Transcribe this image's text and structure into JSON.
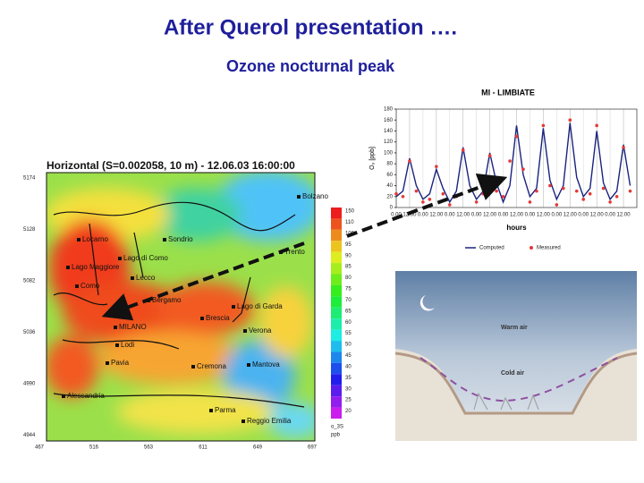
{
  "header": {
    "title": "After Querol presentation ….",
    "subtitle": "Ozone nocturnal peak"
  },
  "map": {
    "title": "Horizontal (S=0.002058, 10 m) - 12.06.03  16:00:00",
    "places": [
      "Bolzano",
      "Locarno",
      "Sondrio",
      "Trento",
      "Lago Maggiore",
      "Lago di Como",
      "Como",
      "Lecco",
      "Bergamo",
      "Lago di Garda",
      "MILANO",
      "Brescia",
      "Verona",
      "Lodi",
      "Pavia",
      "Cremona",
      "Mantova",
      "Alessandria",
      "Parma",
      "Reggio Emilia"
    ],
    "y_labels": [
      "5174",
      "5128",
      "5082",
      "5036",
      "4990",
      "4944"
    ],
    "x_labels": [
      "467",
      "516",
      "563",
      "611",
      "649",
      "697"
    ],
    "colorbar_labels": [
      "150",
      "110",
      "100",
      "95",
      "90",
      "85",
      "80",
      "75",
      "70",
      "65",
      "60",
      "55",
      "50",
      "45",
      "40",
      "35",
      "30",
      "25",
      "20"
    ],
    "colorbar_title": "o_3S",
    "colorbar_unit": "ppb"
  },
  "line_chart": {
    "type": "line",
    "title": "MI - LIMBIATE",
    "y_label": "O₃ [ppb]",
    "x_label": "hours",
    "xlim": [
      0,
      216
    ],
    "ylim": [
      0,
      180
    ],
    "yticks": [
      0,
      20,
      40,
      60,
      80,
      100,
      120,
      140,
      160,
      180
    ],
    "xticks": [
      {
        "value": 0,
        "label": "0.00"
      },
      {
        "value": 12,
        "label": "12.00"
      },
      {
        "value": 24,
        "label": "0.00"
      },
      {
        "value": 36,
        "label": "12.00"
      },
      {
        "value": 48,
        "label": "0.00"
      },
      {
        "value": 60,
        "label": "12.00"
      },
      {
        "value": 72,
        "label": "0.00"
      },
      {
        "value": 84,
        "label": "12.00"
      },
      {
        "value": 96,
        "label": "0.00"
      },
      {
        "value": 108,
        "label": "12.00"
      },
      {
        "value": 120,
        "label": "0.00"
      },
      {
        "value": 132,
        "label": "12.00"
      },
      {
        "value": 144,
        "label": "0.00"
      },
      {
        "value": 156,
        "label": "12.00"
      },
      {
        "value": 168,
        "label": "0.00"
      },
      {
        "value": 180,
        "label": "12.00"
      },
      {
        "value": 192,
        "label": "0.00"
      },
      {
        "value": 204,
        "label": "12.00"
      }
    ],
    "x": [
      0,
      6,
      12,
      18,
      24,
      30,
      36,
      42,
      48,
      54,
      60,
      66,
      72,
      78,
      84,
      90,
      96,
      102,
      108,
      114,
      120,
      126,
      132,
      138,
      144,
      150,
      156,
      162,
      168,
      174,
      180,
      186,
      192,
      198,
      204,
      210
    ],
    "series": [
      {
        "name": "Computed",
        "color": "#1a237e",
        "values": [
          20,
          30,
          90,
          40,
          15,
          25,
          70,
          35,
          10,
          30,
          110,
          40,
          15,
          30,
          100,
          45,
          10,
          40,
          150,
          60,
          20,
          35,
          145,
          50,
          15,
          40,
          155,
          55,
          20,
          35,
          140,
          45,
          15,
          30,
          115,
          40
        ]
      },
      {
        "name": "Measured",
        "color": "#e53935",
        "values": [
          25,
          20,
          85,
          30,
          10,
          15,
          75,
          25,
          5,
          20,
          105,
          30,
          10,
          25,
          95,
          30,
          20,
          85,
          130,
          70,
          10,
          30,
          150,
          40,
          5,
          35,
          160,
          30,
          15,
          25,
          150,
          35,
          10,
          20,
          110,
          30
        ]
      }
    ]
  },
  "diagram": {
    "warm": "Warm air",
    "cold": "Cold air"
  }
}
